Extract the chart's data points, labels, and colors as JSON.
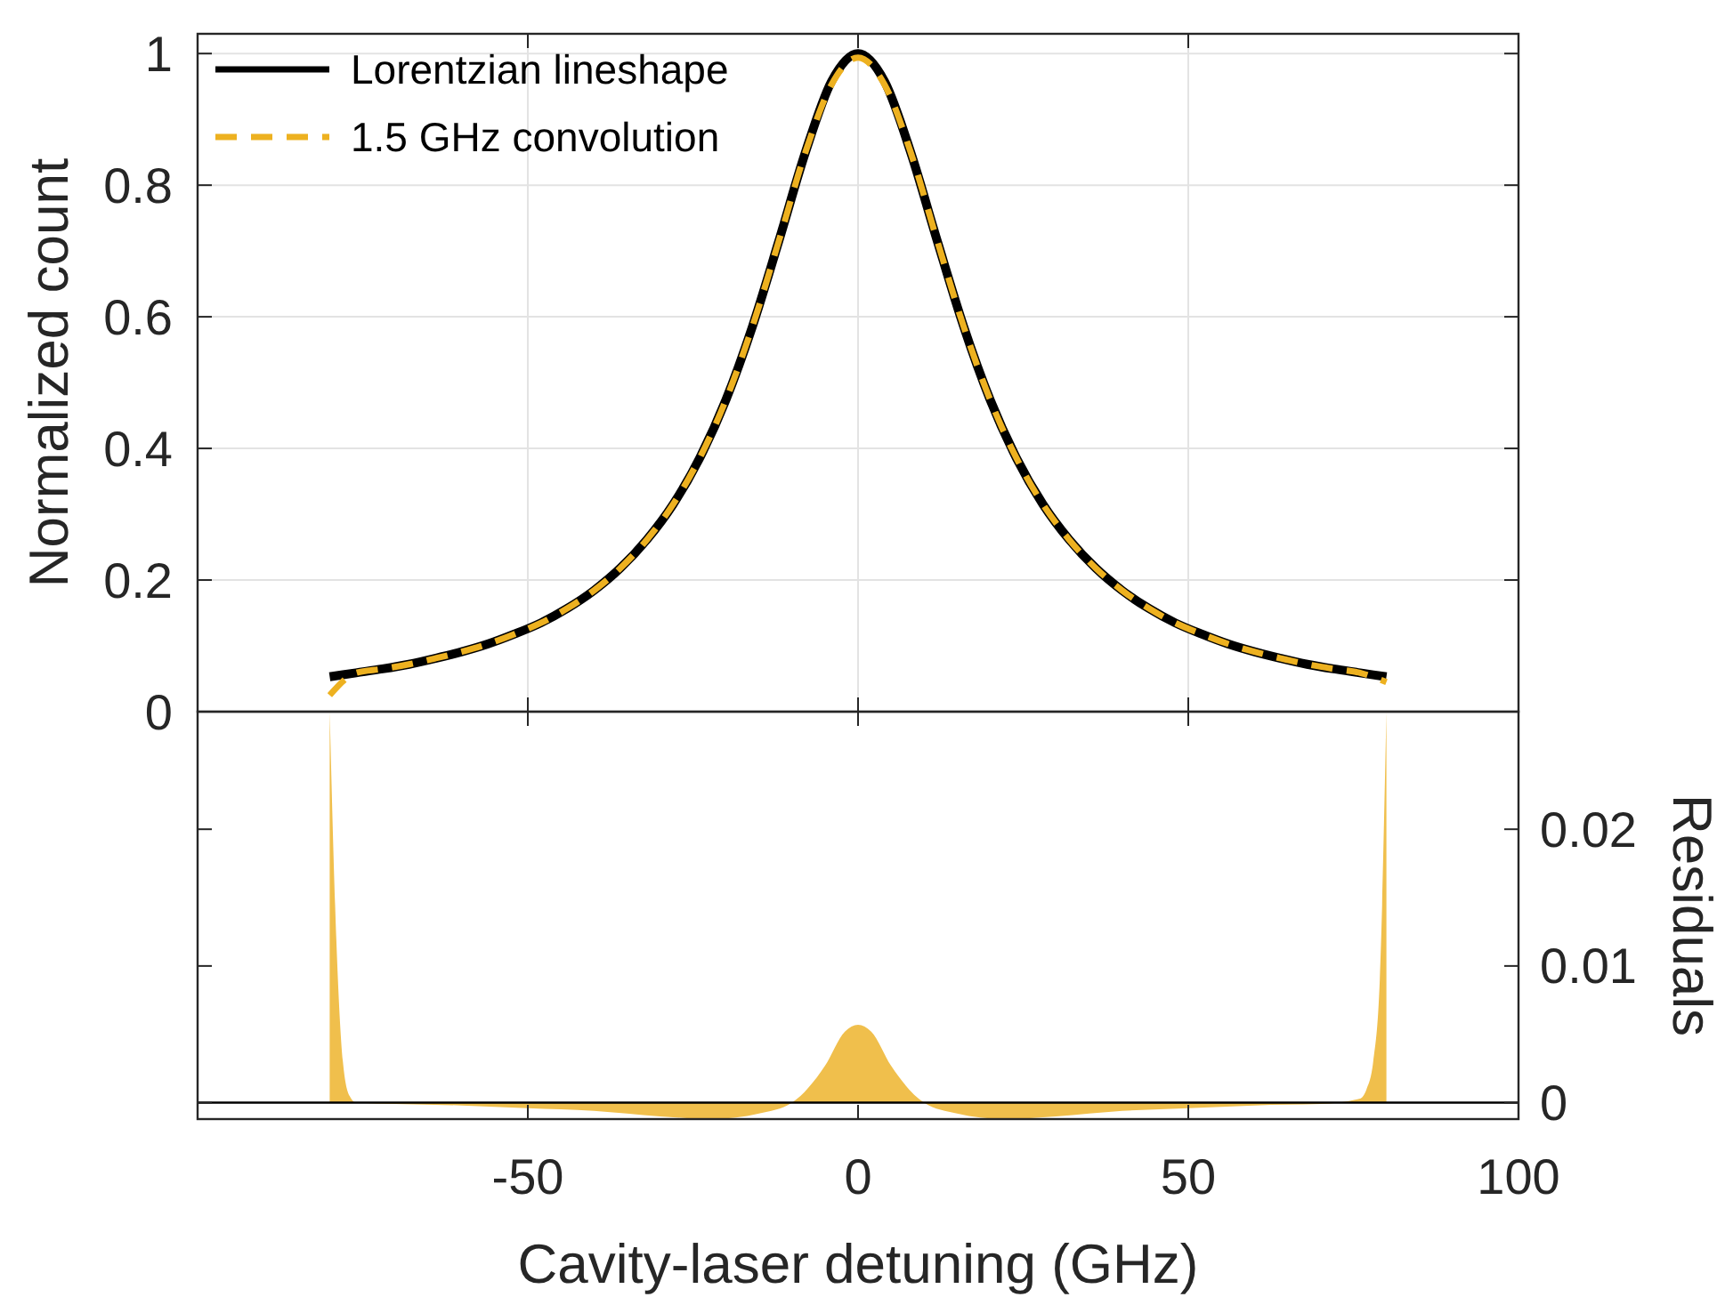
{
  "chart_data": [
    {
      "type": "line",
      "ylabel": "Normalized count",
      "xlim": [
        -100,
        100
      ],
      "xticks": [
        -50,
        0,
        50,
        100
      ],
      "ylim": [
        0,
        1.03
      ],
      "yticks": [
        0,
        0.2,
        0.4,
        0.6,
        0.8,
        1
      ],
      "grid": true,
      "legend": "top left",
      "tick_labels": "y",
      "x": [
        -80,
        -76,
        -72,
        -68,
        -64,
        -60,
        -56,
        -52,
        -48,
        -44,
        -40,
        -36,
        -32,
        -28,
        -24,
        -20,
        -16,
        -12,
        -8,
        -4,
        0,
        4,
        8,
        12,
        16,
        20,
        24,
        28,
        32,
        36,
        40,
        44,
        48,
        52,
        56,
        60,
        64,
        68,
        72,
        76,
        80
      ],
      "series": [
        {
          "name": "Lorentzian lineshape",
          "color": "#000000",
          "line_style": "solid",
          "values": [
            0.053,
            0.059,
            0.065,
            0.072,
            0.081,
            0.091,
            0.103,
            0.118,
            0.135,
            0.157,
            0.184,
            0.218,
            0.261,
            0.315,
            0.385,
            0.474,
            0.585,
            0.715,
            0.849,
            0.958,
            1,
            0.958,
            0.849,
            0.715,
            0.585,
            0.474,
            0.385,
            0.315,
            0.261,
            0.218,
            0.184,
            0.157,
            0.135,
            0.118,
            0.103,
            0.091,
            0.081,
            0.072,
            0.065,
            0.059,
            0.053
          ]
        },
        {
          "name": "1.5 GHz convolution",
          "color": "#edb120",
          "line_style": "dashed",
          "values": [
            0.025,
            0.059,
            0.065,
            0.072,
            0.081,
            0.091,
            0.103,
            0.118,
            0.135,
            0.157,
            0.184,
            0.218,
            0.261,
            0.315,
            0.385,
            0.474,
            0.585,
            0.715,
            0.849,
            0.953,
            0.994,
            0.953,
            0.849,
            0.715,
            0.585,
            0.474,
            0.385,
            0.315,
            0.261,
            0.218,
            0.184,
            0.157,
            0.135,
            0.118,
            0.103,
            0.091,
            0.081,
            0.072,
            0.065,
            0.059,
            0.045
          ]
        }
      ]
    },
    {
      "type": "area",
      "xlabel": "Cavity-laser detuning (GHz)",
      "y2label": "Residuals",
      "xlim": [
        -100,
        100
      ],
      "xticks": [
        -50,
        0,
        50,
        100
      ],
      "y2lim": [
        -0.0012,
        0.0286
      ],
      "y2ticks": [
        0,
        0.01,
        0.02
      ],
      "grid": false,
      "ref_lines": [
        {
          "axis": "y2",
          "value": 0,
          "color": "#000000"
        }
      ],
      "x": [
        -80,
        -79,
        -78,
        -77,
        -76,
        -70,
        -60,
        -50,
        -40,
        -30,
        -22,
        -15,
        -10,
        -5,
        -2,
        0,
        2,
        5,
        10,
        15,
        22,
        30,
        40,
        50,
        60,
        70,
        76,
        77,
        78,
        79,
        80
      ],
      "series": [
        {
          "axis": "y2",
          "color": "#f0bf4c",
          "values": [
            0.0286,
            0.012,
            0.003,
            0.0005,
            0,
            -0.0001,
            -0.0002,
            -0.0004,
            -0.0006,
            -0.001,
            -0.0012,
            -0.0008,
            0,
            0.0027,
            0.0052,
            0.0057,
            0.0052,
            0.0027,
            0,
            -0.0008,
            -0.0012,
            -0.001,
            -0.0006,
            -0.0004,
            -0.0002,
            -0.0001,
            0.0003,
            0.001,
            0.003,
            0.009,
            0.0286
          ]
        }
      ]
    }
  ]
}
